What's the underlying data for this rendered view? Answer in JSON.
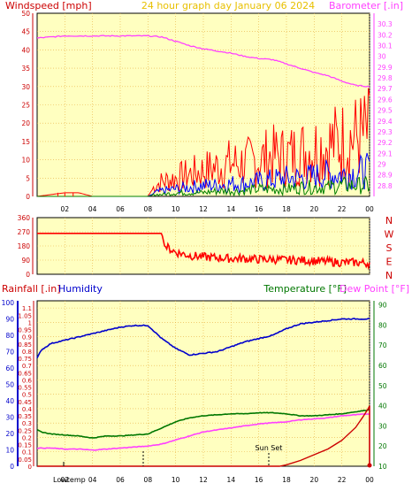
{
  "header": {
    "left_label": "Windspeed [mph]",
    "center_label": "24 hour graph day   January 06 2024",
    "right_label": "Barometer [.in]"
  },
  "direction_labels": [
    "N",
    "W",
    "S",
    "E",
    "N"
  ],
  "lower_header": {
    "rainfall_label": "Rainfall [.in]",
    "humidity_label": "Humidity",
    "temperature_label": "Temperature [°F]",
    "dewpoint_label": "Dew Point [°F]"
  },
  "annotations": {
    "lowtemp_label": "Lowtemp",
    "sunrise_label": "",
    "sunset_label": "Sun Set"
  },
  "colors": {
    "plot_bg": "#ffffc0",
    "grid": "#e8b040",
    "wind_axis": "#cc0000",
    "baro": "#ff40ff",
    "gust": "#ff0000",
    "avg": "#0000ff",
    "low": "#008000",
    "humidity": "#0000cc",
    "temperature": "#007700",
    "dewpoint": "#ff40ff",
    "rain": "#cc0000"
  },
  "chart_data": [
    {
      "type": "line",
      "name_panel": "wind-baro",
      "x_ticks": [
        "02",
        "04",
        "06",
        "08",
        "10",
        "12",
        "14",
        "16",
        "18",
        "20",
        "22",
        "00"
      ],
      "xlim": [
        0,
        24
      ],
      "ylim_left": [
        0,
        50
      ],
      "y_ticks_left": [
        0,
        5,
        10,
        15,
        20,
        25,
        30,
        35,
        40,
        45,
        50
      ],
      "ylim_right": [
        28.7,
        30.4
      ],
      "y_ticks_right": [
        "28.8",
        "28.9",
        "29",
        "29.1",
        "29.2",
        "29.3",
        "29.4",
        "29.5",
        "29.6",
        "29.7",
        "29.8",
        "29.9",
        "30",
        "30.1",
        "30.2",
        "30.3"
      ],
      "barometer": {
        "x": [
          0,
          1,
          2,
          3,
          4,
          5,
          6,
          7,
          8,
          9,
          10,
          11,
          12,
          13,
          14,
          15,
          16,
          17,
          18,
          19,
          20,
          21,
          22,
          23,
          24
        ],
        "y": [
          30.17,
          30.18,
          30.19,
          30.19,
          30.19,
          30.19,
          30.19,
          30.19,
          30.19,
          30.18,
          30.14,
          30.1,
          30.07,
          30.05,
          30.03,
          30.0,
          29.98,
          29.97,
          29.93,
          29.89,
          29.85,
          29.82,
          29.77,
          29.73,
          29.72
        ]
      },
      "wind_gust": {
        "x": [
          0,
          1,
          2,
          3,
          4,
          5,
          6,
          7,
          8,
          8.5,
          9,
          10,
          11,
          12,
          13,
          14,
          15,
          16,
          17,
          18,
          19,
          20,
          21,
          22,
          23,
          24
        ],
        "y": [
          0,
          0.5,
          1,
          1,
          0,
          0,
          0,
          0,
          0,
          3,
          4,
          5,
          6,
          7,
          8,
          9,
          9,
          10,
          11,
          11,
          12,
          13,
          14,
          15,
          16,
          17
        ]
      },
      "wind_avg": {
        "x": [
          0,
          8,
          8.5,
          9,
          10,
          11,
          12,
          13,
          14,
          15,
          16,
          17,
          18,
          19,
          20,
          21,
          22,
          23,
          24
        ],
        "y": [
          0,
          0,
          1,
          1.5,
          2,
          2.5,
          3,
          3,
          3.5,
          3.5,
          4,
          4.5,
          5,
          5,
          5.5,
          6,
          6,
          6.5,
          7
        ]
      },
      "wind_low": {
        "x": [
          0,
          8,
          8.5,
          9,
          10,
          11,
          12,
          13,
          14,
          15,
          16,
          17,
          18,
          19,
          20,
          21,
          22,
          23,
          24
        ],
        "y": [
          0,
          0,
          0.5,
          0.5,
          1,
          1,
          1,
          1.5,
          1.5,
          1.5,
          2,
          2,
          2,
          2.5,
          2.5,
          2.5,
          3,
          3,
          3
        ]
      }
    },
    {
      "type": "line",
      "name_panel": "wind-direction",
      "xlim": [
        0,
        24
      ],
      "ylim": [
        0,
        360
      ],
      "y_ticks": [
        0,
        90,
        180,
        270,
        360
      ],
      "direction": {
        "x": [
          0,
          2,
          4,
          6,
          8,
          9,
          9.2,
          10,
          11,
          12,
          13,
          14,
          15,
          16,
          17,
          18,
          19,
          20,
          21,
          22,
          23,
          24
        ],
        "y": [
          260,
          260,
          260,
          260,
          260,
          260,
          180,
          140,
          120,
          110,
          105,
          100,
          100,
          95,
          95,
          90,
          90,
          85,
          80,
          75,
          75,
          70
        ]
      }
    },
    {
      "type": "line",
      "name_panel": "temp-humidity-rain",
      "x_ticks": [
        "02",
        "04",
        "06",
        "08",
        "10",
        "12",
        "14",
        "16",
        "18",
        "20",
        "22",
        "00"
      ],
      "xlim": [
        0,
        24
      ],
      "ylim_humidity": [
        0,
        100
      ],
      "y_ticks_humidity": [
        0,
        10,
        20,
        30,
        40,
        50,
        60,
        70,
        80,
        90,
        100
      ],
      "ylim_rain": [
        0,
        1.15
      ],
      "y_ticks_rain": [
        "0",
        "0.05",
        "0.1",
        "0.15",
        "0.2",
        "0.25",
        "0.3",
        "0.35",
        "0.4",
        "0.45",
        "0.5",
        "0.55",
        "0.6",
        "0.65",
        "0.7",
        "0.75",
        "0.8",
        "0.85",
        "0.9",
        "0.95",
        "1",
        "1.05",
        "1.1"
      ],
      "ylim_temp": [
        10,
        92
      ],
      "y_ticks_temp": [
        10,
        20,
        30,
        40,
        50,
        60,
        70,
        80,
        90
      ],
      "humidity": {
        "x": [
          0,
          0.3,
          1,
          2,
          3,
          4,
          5,
          6,
          7,
          8,
          9,
          10,
          11,
          12,
          13,
          14,
          15,
          16,
          17,
          18,
          19,
          20,
          21,
          22,
          23,
          24
        ],
        "y": [
          66,
          71,
          75,
          77,
          79,
          81,
          83,
          85,
          86,
          86,
          78,
          72,
          68,
          69,
          70,
          73,
          76,
          78,
          80,
          84,
          87,
          88,
          89,
          90,
          90,
          90
        ]
      },
      "temperature": {
        "x": [
          0,
          0.3,
          1,
          2,
          3,
          4,
          5,
          6,
          7,
          8,
          9,
          10,
          11,
          12,
          13,
          14,
          15,
          16,
          17,
          18,
          19,
          20,
          21,
          22,
          23,
          24
        ],
        "y": [
          28,
          27,
          26,
          25.5,
          25,
          24,
          25,
          25,
          25.5,
          26,
          29,
          32,
          34,
          35,
          35.5,
          36,
          36,
          36.5,
          36.5,
          36,
          35,
          35,
          35.5,
          36,
          37,
          38
        ]
      },
      "dewpoint": {
        "x": [
          0,
          1,
          2,
          3,
          4,
          5,
          6,
          7,
          8,
          9,
          10,
          11,
          12,
          13,
          14,
          15,
          16,
          17,
          18,
          19,
          20,
          21,
          22,
          23,
          24
        ],
        "y": [
          19,
          19,
          18.5,
          18.5,
          18,
          18.5,
          19,
          19.5,
          20,
          21,
          23,
          25,
          27,
          28,
          29,
          30,
          31,
          31.5,
          32,
          33,
          33.5,
          34,
          35,
          35.5,
          36
        ]
      },
      "rainfall": {
        "x": [
          0,
          17.5,
          18,
          19,
          20,
          21,
          22,
          23,
          23.5,
          23.9,
          24
        ],
        "y": [
          0,
          0,
          0.01,
          0.04,
          0.08,
          0.12,
          0.18,
          0.27,
          0.34,
          0.4,
          0.42
        ]
      }
    }
  ]
}
